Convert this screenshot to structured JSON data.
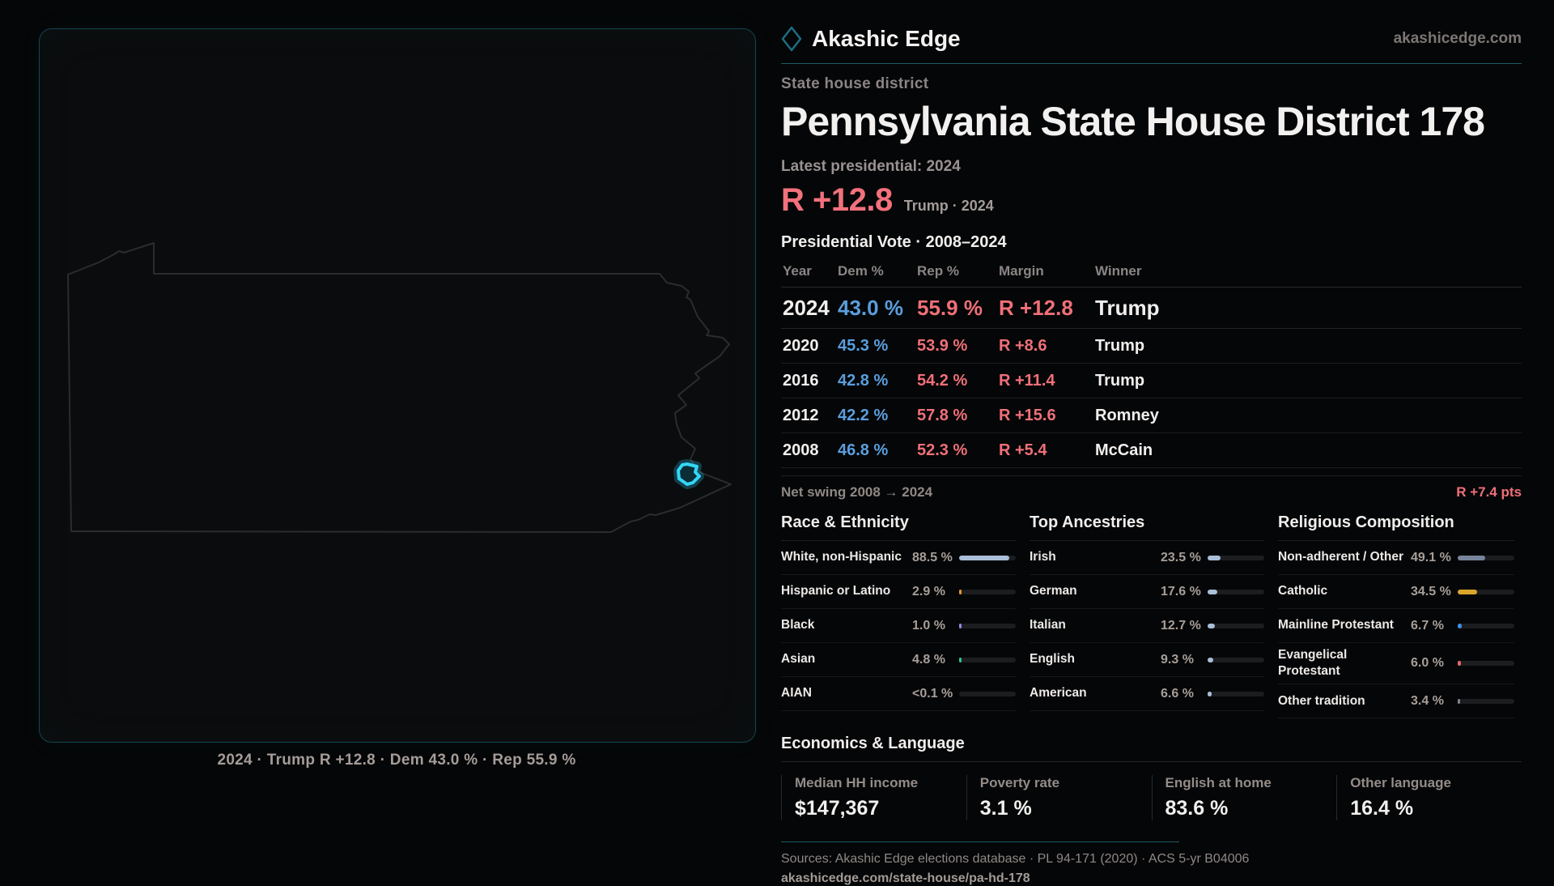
{
  "brand": {
    "name": "Akashic Edge",
    "website": "akashicedge.com"
  },
  "page": {
    "eyebrow": "State house district",
    "title": "Pennsylvania State House District 178"
  },
  "latest": {
    "label": "Latest presidential: 2024",
    "margin": "R +12.8",
    "note": "Trump · 2024"
  },
  "table": {
    "title": "Presidential Vote · 2008–2024",
    "columns": [
      "Year",
      "Dem %",
      "Rep %",
      "Margin",
      "Winner"
    ],
    "rows": [
      {
        "year": "2024",
        "dem": "43.0 %",
        "rep": "55.9 %",
        "margin": "R +12.8",
        "winner": "Trump",
        "big": true
      },
      {
        "year": "2020",
        "dem": "45.3 %",
        "rep": "53.9 %",
        "margin": "R +8.6",
        "winner": "Trump",
        "big": false
      },
      {
        "year": "2016",
        "dem": "42.8 %",
        "rep": "54.2 %",
        "margin": "R +11.4",
        "winner": "Trump",
        "big": false
      },
      {
        "year": "2012",
        "dem": "42.2 %",
        "rep": "57.8 %",
        "margin": "R +15.6",
        "winner": "Romney",
        "big": false
      },
      {
        "year": "2008",
        "dem": "46.8 %",
        "rep": "52.3 %",
        "margin": "R +5.4",
        "winner": "McCain",
        "big": false
      }
    ]
  },
  "net_swing": {
    "label": "Net swing 2008 → 2024",
    "value": "R +7.4 pts"
  },
  "demographics": {
    "sections": [
      {
        "title": "Race & Ethnicity",
        "rows": [
          {
            "label": "White, non-Hispanic",
            "value": "88.5 %",
            "pct": 88.5,
            "color": "#a9bed9"
          },
          {
            "label": "Hispanic or Latino",
            "value": "2.9 %",
            "pct": 2.9,
            "color": "#e0962e"
          },
          {
            "label": "Black",
            "value": "1.0 %",
            "pct": 1.0,
            "color": "#9087e6"
          },
          {
            "label": "Asian",
            "value": "4.8 %",
            "pct": 4.8,
            "color": "#2ec48e"
          },
          {
            "label": "AIAN",
            "value": "<0.1 %",
            "pct": 0,
            "color": "#a9bed9"
          }
        ]
      },
      {
        "title": "Top Ancestries",
        "rows": [
          {
            "label": "Irish",
            "value": "23.5 %",
            "pct": 23.5,
            "color": "#a9bed9"
          },
          {
            "label": "German",
            "value": "17.6 %",
            "pct": 17.6,
            "color": "#a9bed9"
          },
          {
            "label": "Italian",
            "value": "12.7 %",
            "pct": 12.7,
            "color": "#a9bed9"
          },
          {
            "label": "English",
            "value": "9.3 %",
            "pct": 9.3,
            "color": "#a9bed9"
          },
          {
            "label": "American",
            "value": "6.6 %",
            "pct": 6.6,
            "color": "#a9bed9"
          }
        ]
      },
      {
        "title": "Religious Composition",
        "rows": [
          {
            "label": "Non-adherent / Other",
            "value": "49.1 %",
            "pct": 49.1,
            "color": "#76849b"
          },
          {
            "label": "Catholic",
            "value": "34.5 %",
            "pct": 34.5,
            "color": "#d9a62c"
          },
          {
            "label": "Mainline Protestant",
            "value": "6.7 %",
            "pct": 6.7,
            "color": "#3f8fe6"
          },
          {
            "label": "Evangelical Protestant",
            "value": "6.0 %",
            "pct": 6.0,
            "color": "#e2666c"
          },
          {
            "label": "Other tradition",
            "value": "3.4 %",
            "pct": 3.4,
            "color": "#7d848d"
          }
        ]
      }
    ]
  },
  "economics": {
    "title": "Economics & Language",
    "stats": [
      {
        "label": "Median HH income",
        "value": "$147,367"
      },
      {
        "label": "Poverty rate",
        "value": "3.1 %"
      },
      {
        "label": "English at home",
        "value": "83.6 %"
      },
      {
        "label": "Other language",
        "value": "16.4 %"
      }
    ]
  },
  "map": {
    "caption": "2024 · Trump R +12.8 · Dem 43.0 % · Rep 55.9 %"
  },
  "footer": {
    "sources": "Sources: Akashic Edge elections database · PL 94-171 (2020) · ACS 5-yr B04006",
    "url": "akashicedge.com/state-house/pa-hd-178"
  },
  "colors": {
    "dem_blue": "#5a9ede",
    "rep_red": "#ef7079",
    "accent_cyan": "#33d6f7",
    "teal_line": "#1d5a66",
    "gold": "#d9a62c"
  },
  "chart_data": [
    {
      "type": "table",
      "title": "Presidential Vote · 2008–2024",
      "columns": [
        "Year",
        "Dem %",
        "Rep %",
        "Margin",
        "Winner"
      ],
      "rows": [
        [
          "2024",
          43.0,
          55.9,
          "R +12.8",
          "Trump"
        ],
        [
          "2020",
          45.3,
          53.9,
          "R +8.6",
          "Trump"
        ],
        [
          "2016",
          42.8,
          54.2,
          "R +11.4",
          "Trump"
        ],
        [
          "2012",
          42.2,
          57.8,
          "R +15.6",
          "Romney"
        ],
        [
          "2008",
          46.8,
          52.3,
          "R +5.4",
          "McCain"
        ]
      ]
    },
    {
      "type": "bar",
      "title": "Race & Ethnicity",
      "categories": [
        "White, non-Hispanic",
        "Hispanic or Latino",
        "Black",
        "Asian",
        "AIAN"
      ],
      "values": [
        88.5,
        2.9,
        1.0,
        4.8,
        0.05
      ],
      "xlim": [
        0,
        100
      ]
    },
    {
      "type": "bar",
      "title": "Top Ancestries",
      "categories": [
        "Irish",
        "German",
        "Italian",
        "English",
        "American"
      ],
      "values": [
        23.5,
        17.6,
        12.7,
        9.3,
        6.6
      ],
      "xlim": [
        0,
        100
      ]
    },
    {
      "type": "bar",
      "title": "Religious Composition",
      "categories": [
        "Non-adherent / Other",
        "Catholic",
        "Mainline Protestant",
        "Evangelical Protestant",
        "Other tradition"
      ],
      "values": [
        49.1,
        34.5,
        6.7,
        6.0,
        3.4
      ],
      "xlim": [
        0,
        100
      ]
    }
  ]
}
